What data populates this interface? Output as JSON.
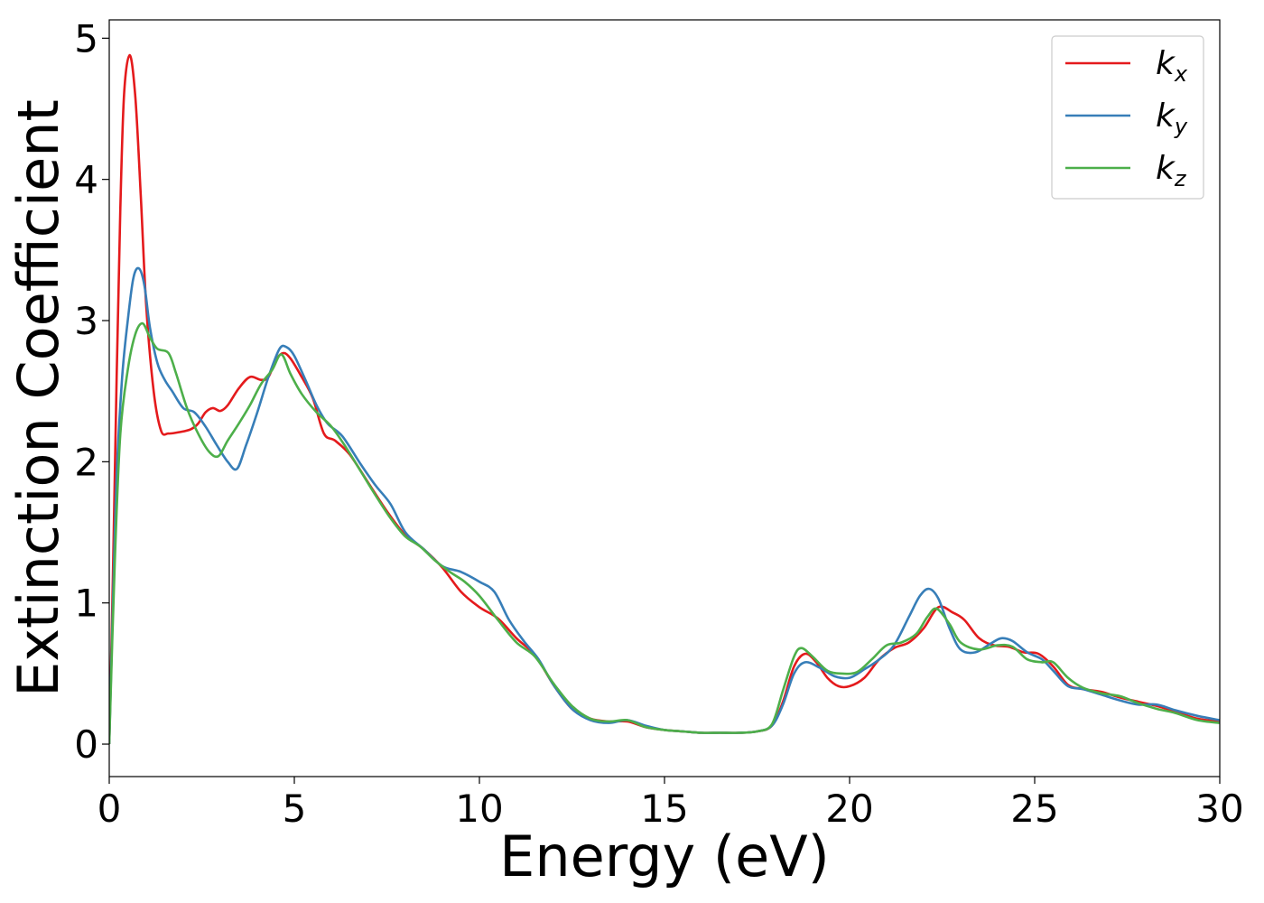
{
  "chart_data": {
    "type": "line",
    "xlabel": "Energy (eV)",
    "ylabel": "Extinction Coefficient",
    "xlim": [
      0,
      30
    ],
    "ylim": [
      -0.23,
      5.13
    ],
    "x_ticks": [
      "0",
      "5",
      "10",
      "15",
      "20",
      "25",
      "30"
    ],
    "y_ticks": [
      "0",
      "1",
      "2",
      "3",
      "4",
      "5"
    ],
    "grid": false,
    "legend_position": "top-right",
    "colors": {
      "kx": "#e41a1c",
      "ky": "#377eb8",
      "kz": "#4daf4a"
    },
    "series": [
      {
        "name": "kx",
        "base": "k",
        "sub": "x",
        "color": "#e41a1c",
        "points": [
          [
            0,
            0
          ],
          [
            0.1,
            1.2
          ],
          [
            0.2,
            2.6
          ],
          [
            0.3,
            3.8
          ],
          [
            0.4,
            4.6
          ],
          [
            0.55,
            4.88
          ],
          [
            0.7,
            4.6
          ],
          [
            0.85,
            3.9
          ],
          [
            1.0,
            3.1
          ],
          [
            1.2,
            2.5
          ],
          [
            1.4,
            2.22
          ],
          [
            1.6,
            2.2
          ],
          [
            1.9,
            2.21
          ],
          [
            2.2,
            2.23
          ],
          [
            2.4,
            2.27
          ],
          [
            2.6,
            2.35
          ],
          [
            2.8,
            2.38
          ],
          [
            3.0,
            2.36
          ],
          [
            3.2,
            2.4
          ],
          [
            3.5,
            2.52
          ],
          [
            3.8,
            2.6
          ],
          [
            4.1,
            2.58
          ],
          [
            4.3,
            2.6
          ],
          [
            4.5,
            2.72
          ],
          [
            4.7,
            2.77
          ],
          [
            4.9,
            2.73
          ],
          [
            5.2,
            2.6
          ],
          [
            5.5,
            2.45
          ],
          [
            5.8,
            2.2
          ],
          [
            6.1,
            2.15
          ],
          [
            6.5,
            2.05
          ],
          [
            7.0,
            1.85
          ],
          [
            7.5,
            1.65
          ],
          [
            8.0,
            1.48
          ],
          [
            8.5,
            1.38
          ],
          [
            9.0,
            1.25
          ],
          [
            9.5,
            1.08
          ],
          [
            10.0,
            0.97
          ],
          [
            10.5,
            0.89
          ],
          [
            11.0,
            0.75
          ],
          [
            11.5,
            0.63
          ],
          [
            12.0,
            0.42
          ],
          [
            12.5,
            0.25
          ],
          [
            13.0,
            0.18
          ],
          [
            13.5,
            0.16
          ],
          [
            14.0,
            0.16
          ],
          [
            14.5,
            0.12
          ],
          [
            15.0,
            0.1
          ],
          [
            15.5,
            0.09
          ],
          [
            16.0,
            0.08
          ],
          [
            16.5,
            0.08
          ],
          [
            17.0,
            0.08
          ],
          [
            17.5,
            0.09
          ],
          [
            17.9,
            0.13
          ],
          [
            18.2,
            0.3
          ],
          [
            18.5,
            0.55
          ],
          [
            18.8,
            0.64
          ],
          [
            19.1,
            0.58
          ],
          [
            19.4,
            0.47
          ],
          [
            19.7,
            0.41
          ],
          [
            20.0,
            0.41
          ],
          [
            20.4,
            0.47
          ],
          [
            20.8,
            0.6
          ],
          [
            21.2,
            0.68
          ],
          [
            21.6,
            0.72
          ],
          [
            22.0,
            0.82
          ],
          [
            22.4,
            0.97
          ],
          [
            22.8,
            0.93
          ],
          [
            23.1,
            0.88
          ],
          [
            23.5,
            0.75
          ],
          [
            23.9,
            0.7
          ],
          [
            24.3,
            0.69
          ],
          [
            24.7,
            0.65
          ],
          [
            25.1,
            0.64
          ],
          [
            25.5,
            0.55
          ],
          [
            25.9,
            0.42
          ],
          [
            26.3,
            0.39
          ],
          [
            26.8,
            0.37
          ],
          [
            27.3,
            0.33
          ],
          [
            27.8,
            0.3
          ],
          [
            28.3,
            0.27
          ],
          [
            28.8,
            0.23
          ],
          [
            29.4,
            0.18
          ],
          [
            30.0,
            0.16
          ]
        ]
      },
      {
        "name": "ky",
        "base": "k",
        "sub": "y",
        "color": "#377eb8",
        "points": [
          [
            0,
            0
          ],
          [
            0.1,
            1.0
          ],
          [
            0.2,
            1.9
          ],
          [
            0.35,
            2.6
          ],
          [
            0.5,
            3.0
          ],
          [
            0.65,
            3.3
          ],
          [
            0.8,
            3.37
          ],
          [
            0.95,
            3.25
          ],
          [
            1.1,
            2.95
          ],
          [
            1.3,
            2.7
          ],
          [
            1.5,
            2.58
          ],
          [
            1.7,
            2.5
          ],
          [
            2.0,
            2.38
          ],
          [
            2.3,
            2.35
          ],
          [
            2.6,
            2.25
          ],
          [
            2.9,
            2.12
          ],
          [
            3.2,
            2.0
          ],
          [
            3.45,
            1.95
          ],
          [
            3.7,
            2.12
          ],
          [
            4.0,
            2.35
          ],
          [
            4.3,
            2.6
          ],
          [
            4.6,
            2.8
          ],
          [
            4.8,
            2.81
          ],
          [
            5.0,
            2.75
          ],
          [
            5.3,
            2.58
          ],
          [
            5.6,
            2.4
          ],
          [
            5.9,
            2.27
          ],
          [
            6.3,
            2.18
          ],
          [
            6.8,
            1.98
          ],
          [
            7.2,
            1.83
          ],
          [
            7.6,
            1.7
          ],
          [
            8.0,
            1.5
          ],
          [
            8.5,
            1.38
          ],
          [
            9.0,
            1.26
          ],
          [
            9.5,
            1.22
          ],
          [
            10.0,
            1.15
          ],
          [
            10.4,
            1.08
          ],
          [
            10.8,
            0.88
          ],
          [
            11.2,
            0.73
          ],
          [
            11.6,
            0.6
          ],
          [
            12.0,
            0.42
          ],
          [
            12.5,
            0.25
          ],
          [
            13.0,
            0.17
          ],
          [
            13.5,
            0.15
          ],
          [
            14.0,
            0.17
          ],
          [
            14.5,
            0.13
          ],
          [
            15.0,
            0.1
          ],
          [
            15.5,
            0.09
          ],
          [
            16.0,
            0.08
          ],
          [
            16.5,
            0.08
          ],
          [
            17.0,
            0.08
          ],
          [
            17.5,
            0.09
          ],
          [
            17.9,
            0.13
          ],
          [
            18.2,
            0.28
          ],
          [
            18.5,
            0.5
          ],
          [
            18.8,
            0.58
          ],
          [
            19.2,
            0.54
          ],
          [
            19.6,
            0.48
          ],
          [
            20.0,
            0.47
          ],
          [
            20.4,
            0.53
          ],
          [
            20.8,
            0.6
          ],
          [
            21.2,
            0.7
          ],
          [
            21.6,
            0.9
          ],
          [
            21.9,
            1.05
          ],
          [
            22.15,
            1.1
          ],
          [
            22.4,
            1.03
          ],
          [
            22.7,
            0.82
          ],
          [
            23.0,
            0.67
          ],
          [
            23.4,
            0.65
          ],
          [
            23.8,
            0.71
          ],
          [
            24.1,
            0.75
          ],
          [
            24.4,
            0.73
          ],
          [
            24.8,
            0.65
          ],
          [
            25.2,
            0.6
          ],
          [
            25.5,
            0.52
          ],
          [
            25.9,
            0.41
          ],
          [
            26.3,
            0.39
          ],
          [
            26.8,
            0.35
          ],
          [
            27.3,
            0.31
          ],
          [
            27.8,
            0.28
          ],
          [
            28.3,
            0.28
          ],
          [
            28.8,
            0.24
          ],
          [
            29.4,
            0.2
          ],
          [
            30.0,
            0.17
          ]
        ]
      },
      {
        "name": "kz",
        "base": "k",
        "sub": "z",
        "color": "#4daf4a",
        "points": [
          [
            0,
            0
          ],
          [
            0.15,
            1.3
          ],
          [
            0.3,
            2.2
          ],
          [
            0.5,
            2.65
          ],
          [
            0.7,
            2.9
          ],
          [
            0.9,
            2.98
          ],
          [
            1.1,
            2.88
          ],
          [
            1.3,
            2.8
          ],
          [
            1.6,
            2.77
          ],
          [
            1.8,
            2.63
          ],
          [
            2.1,
            2.38
          ],
          [
            2.4,
            2.2
          ],
          [
            2.7,
            2.07
          ],
          [
            2.95,
            2.04
          ],
          [
            3.2,
            2.15
          ],
          [
            3.5,
            2.27
          ],
          [
            3.8,
            2.4
          ],
          [
            4.1,
            2.55
          ],
          [
            4.4,
            2.65
          ],
          [
            4.65,
            2.76
          ],
          [
            4.9,
            2.62
          ],
          [
            5.2,
            2.48
          ],
          [
            5.6,
            2.35
          ],
          [
            6.0,
            2.25
          ],
          [
            6.4,
            2.1
          ],
          [
            6.8,
            1.93
          ],
          [
            7.2,
            1.76
          ],
          [
            7.6,
            1.6
          ],
          [
            8.0,
            1.47
          ],
          [
            8.4,
            1.4
          ],
          [
            8.8,
            1.3
          ],
          [
            9.2,
            1.22
          ],
          [
            9.6,
            1.15
          ],
          [
            10.0,
            1.05
          ],
          [
            10.5,
            0.88
          ],
          [
            11.0,
            0.72
          ],
          [
            11.5,
            0.62
          ],
          [
            12.0,
            0.43
          ],
          [
            12.5,
            0.27
          ],
          [
            13.0,
            0.18
          ],
          [
            13.5,
            0.16
          ],
          [
            14.0,
            0.17
          ],
          [
            14.5,
            0.12
          ],
          [
            15.0,
            0.1
          ],
          [
            15.5,
            0.09
          ],
          [
            16.0,
            0.08
          ],
          [
            16.5,
            0.08
          ],
          [
            17.0,
            0.08
          ],
          [
            17.5,
            0.09
          ],
          [
            17.9,
            0.14
          ],
          [
            18.2,
            0.38
          ],
          [
            18.5,
            0.62
          ],
          [
            18.7,
            0.68
          ],
          [
            19.0,
            0.62
          ],
          [
            19.4,
            0.52
          ],
          [
            19.8,
            0.5
          ],
          [
            20.2,
            0.51
          ],
          [
            20.6,
            0.6
          ],
          [
            21.0,
            0.7
          ],
          [
            21.4,
            0.72
          ],
          [
            21.8,
            0.78
          ],
          [
            22.1,
            0.9
          ],
          [
            22.35,
            0.96
          ],
          [
            22.7,
            0.85
          ],
          [
            23.0,
            0.72
          ],
          [
            23.5,
            0.67
          ],
          [
            24.0,
            0.7
          ],
          [
            24.4,
            0.69
          ],
          [
            24.8,
            0.6
          ],
          [
            25.2,
            0.58
          ],
          [
            25.5,
            0.58
          ],
          [
            25.9,
            0.47
          ],
          [
            26.3,
            0.4
          ],
          [
            26.8,
            0.36
          ],
          [
            27.3,
            0.34
          ],
          [
            27.8,
            0.29
          ],
          [
            28.3,
            0.25
          ],
          [
            28.8,
            0.22
          ],
          [
            29.4,
            0.17
          ],
          [
            30.0,
            0.15
          ]
        ]
      }
    ]
  }
}
